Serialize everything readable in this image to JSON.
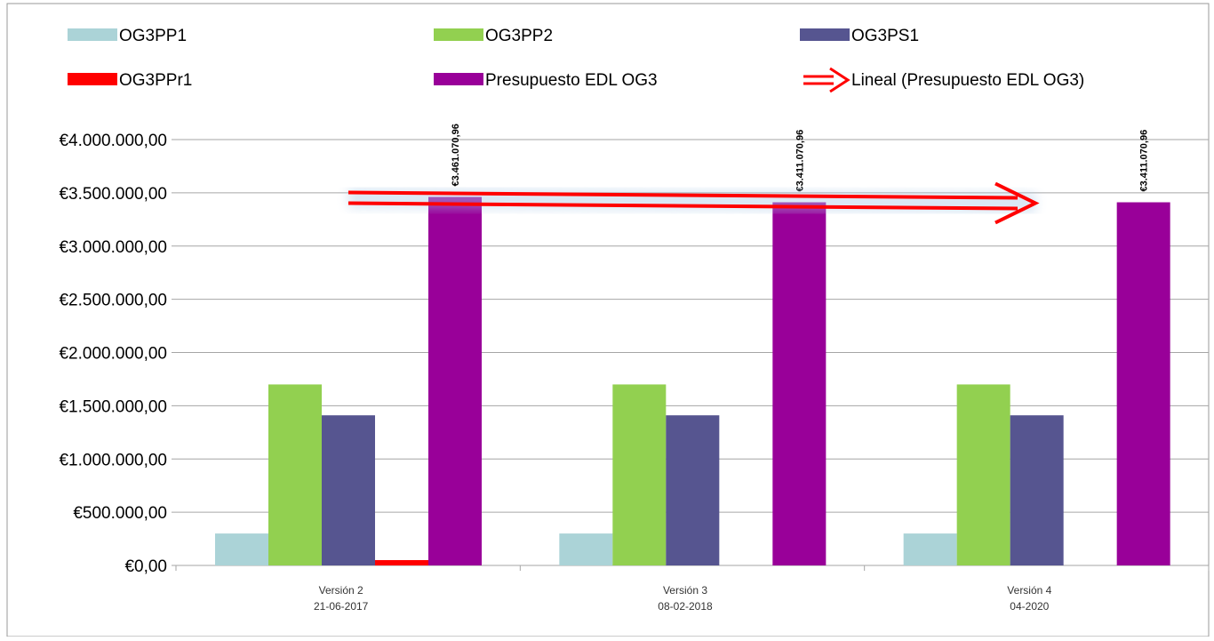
{
  "chart_data": {
    "type": "bar",
    "categories": [
      {
        "line1": "Versión 2",
        "line2": "21-06-2017"
      },
      {
        "line1": "Versión 3",
        "line2": "08-02-2018"
      },
      {
        "line1": "Versión 4",
        "line2": "04-2020"
      }
    ],
    "series": [
      {
        "name": "OG3PP1",
        "color": "#abd3d7",
        "values": [
          300000,
          300000,
          300000
        ]
      },
      {
        "name": "OG3PP2",
        "color": "#92d050",
        "values": [
          1700000,
          1700000,
          1700000
        ]
      },
      {
        "name": "OG3PS1",
        "color": "#565590",
        "values": [
          1410000,
          1410000,
          1410000
        ]
      },
      {
        "name": "OG3PPr1",
        "color": "#ff0000",
        "values": [
          50000,
          0,
          0
        ]
      },
      {
        "name": "Presupuesto EDL OG3",
        "color": "#990099",
        "values": [
          3461070.96,
          3411070.96,
          3411070.96
        ],
        "data_labels": [
          "€3.461.070,96",
          "€3.411.070,96",
          "€3.411.070,96"
        ]
      }
    ],
    "trendline": {
      "name": "Lineal (Presupuesto EDL OG3)",
      "type": "linear",
      "of_series": "Presupuesto EDL OG3",
      "color": "#ff0000",
      "style": "double-arrow"
    },
    "ylim": [
      0,
      4000000
    ],
    "yticks": [
      0,
      500000,
      1000000,
      1500000,
      2000000,
      2500000,
      3000000,
      3500000,
      4000000
    ],
    "ytick_labels": [
      "€0,00",
      "€500.000,00",
      "€1.000.000,00",
      "€1.500.000,00",
      "€2.000.000,00",
      "€2.500.000,00",
      "€3.000.000,00",
      "€3.500.000,00",
      "€4.000.000,00"
    ],
    "grid": "horizontal",
    "legend_position": "top"
  }
}
